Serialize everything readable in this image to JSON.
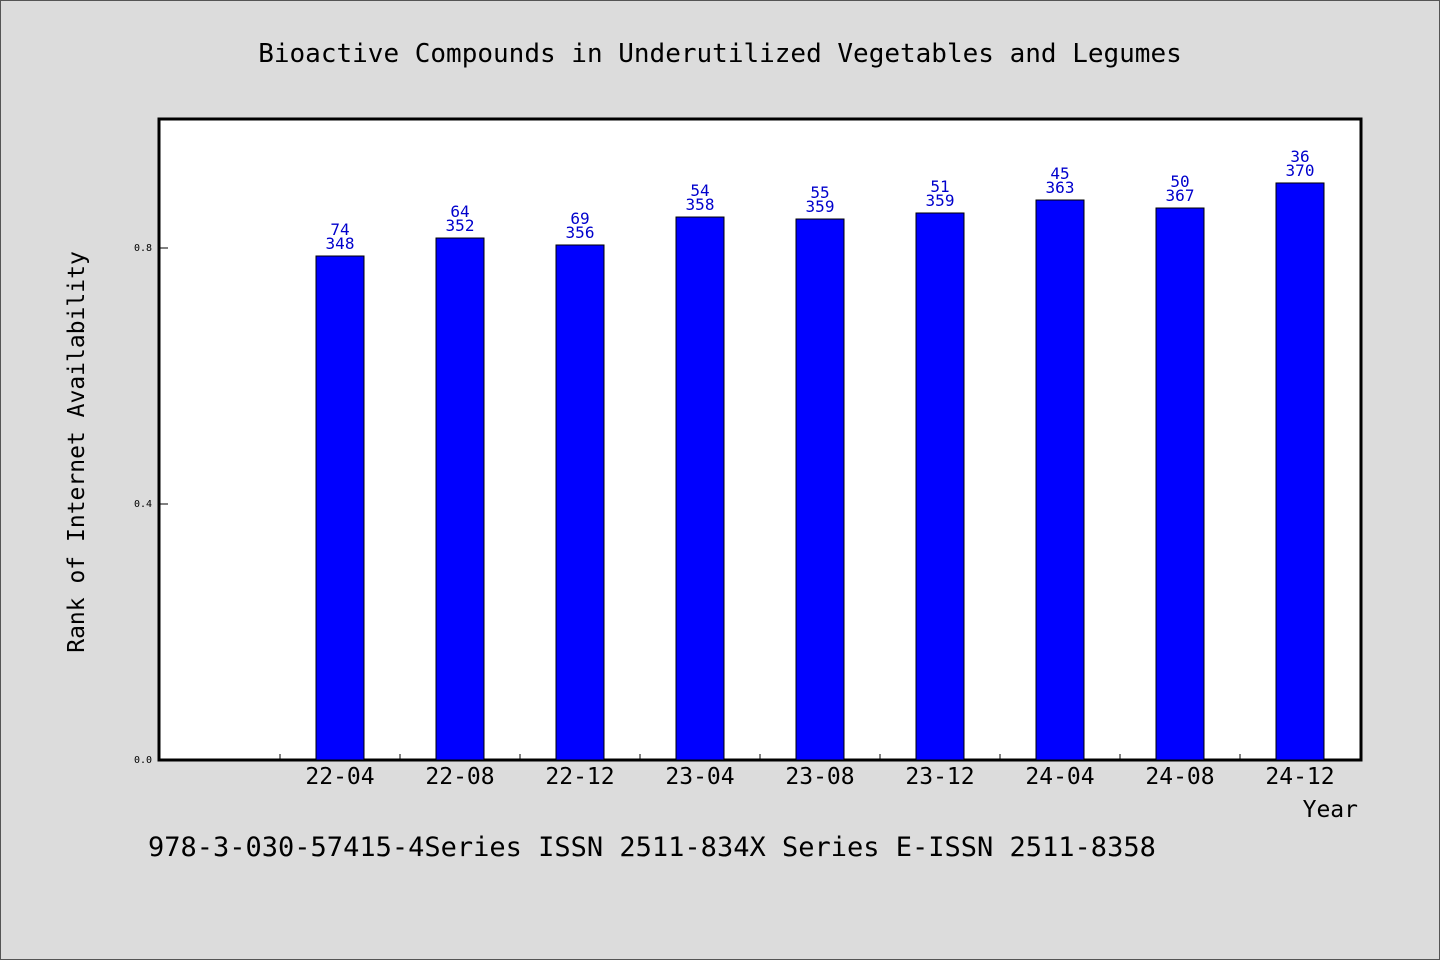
{
  "chart_data": {
    "type": "bar",
    "title": "Bioactive Compounds in Underutilized Vegetables and Legumes",
    "xlabel": "Year",
    "ylabel": "Rank of Internet Availability",
    "ylim": [
      0,
      1.0
    ],
    "yticks": [
      0.0,
      0.4,
      0.8
    ],
    "ytick_labels": [
      "0.0",
      "0.4",
      "0.8"
    ],
    "categories": [
      "22-04",
      "22-08",
      "22-12",
      "23-04",
      "23-08",
      "23-12",
      "24-04",
      "24-08",
      "24-12"
    ],
    "values": [
      0.7875,
      0.8156,
      0.8047,
      0.8484,
      0.8453,
      0.8547,
      0.875,
      0.8625,
      0.9016
    ],
    "labels_top": [
      "74",
      "64",
      "69",
      "54",
      "55",
      "51",
      "45",
      "50",
      "36"
    ],
    "labels_bottom": [
      "348",
      "352",
      "356",
      "358",
      "359",
      "359",
      "363",
      "367",
      "370"
    ],
    "bar_color": "#0000ff",
    "label_color": "#0000cc",
    "grid": false
  },
  "footer": "978-3-030-57415-4Series ISSN 2511-834X Series E-ISSN 2511-8358"
}
